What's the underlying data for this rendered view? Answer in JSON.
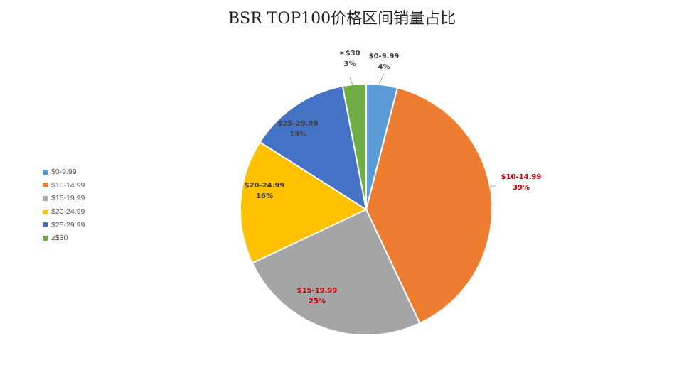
{
  "chart_data": {
    "type": "pie",
    "title": "BSR TOP100价格区间销量占比",
    "legend_position": "left",
    "categories": [
      "$0-9.99",
      "$10-14.99",
      "$15-19.99",
      "$20-24.99",
      "$25-29.99",
      "≥$30"
    ],
    "values": [
      4,
      39,
      25,
      16,
      13,
      3
    ],
    "value_labels": [
      "4%",
      "39%",
      "25%",
      "16%",
      "13%",
      "3%"
    ],
    "colors": [
      "#5B9BD5",
      "#ED7D31",
      "#A5A5A5",
      "#FFC000",
      "#4472C4",
      "#70AD47"
    ],
    "label_colors": [
      "#404040",
      "#C00000",
      "#C00000",
      "#404040",
      "#404040",
      "#404040"
    ]
  }
}
